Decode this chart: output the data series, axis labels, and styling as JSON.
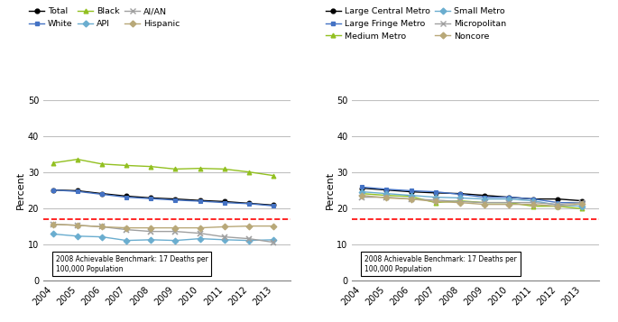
{
  "years": [
    2004,
    2005,
    2006,
    2007,
    2008,
    2009,
    2010,
    2011,
    2012,
    2013
  ],
  "left_chart": {
    "series": {
      "Total": [
        25.0,
        24.8,
        24.0,
        23.3,
        22.8,
        22.5,
        22.1,
        21.8,
        21.3,
        20.8
      ],
      "White": [
        25.0,
        24.6,
        23.8,
        23.0,
        22.6,
        22.2,
        21.9,
        21.5,
        21.2,
        20.6
      ],
      "Black": [
        32.5,
        33.5,
        32.2,
        31.8,
        31.5,
        30.8,
        31.0,
        30.8,
        30.0,
        29.0
      ],
      "API": [
        12.8,
        12.2,
        12.0,
        11.0,
        11.2,
        11.0,
        11.5,
        11.2,
        11.0,
        11.2
      ],
      "AI/AN": [
        15.5,
        15.2,
        14.8,
        14.0,
        13.5,
        13.5,
        13.0,
        12.0,
        11.5,
        10.5
      ],
      "Hispanic": [
        15.5,
        15.2,
        14.8,
        14.5,
        14.5,
        14.5,
        14.5,
        14.8,
        15.0,
        15.0
      ]
    },
    "colors": {
      "Total": "#000000",
      "White": "#4472C4",
      "Black": "#92C020",
      "API": "#4472C4",
      "AI/AN": "#A0A0A0",
      "Hispanic": "#B8A878"
    },
    "markers": {
      "Total": "o",
      "White": "s",
      "Black": "^",
      "API": "D",
      "AI/AN": "x",
      "Hispanic": "D"
    },
    "marker_colors": {
      "Total": "#000000",
      "White": "#4472C4",
      "Black": "#92C020",
      "API": "#6AADCF",
      "AI/AN": "#A0A0A0",
      "Hispanic": "#B8A878"
    },
    "line_colors": {
      "Total": "#000000",
      "White": "#4472C4",
      "Black": "#92C020",
      "API": "#6AADCF",
      "AI/AN": "#A0A0A0",
      "Hispanic": "#B8A878"
    },
    "benchmark": 17,
    "benchmark_label": "2008 Achievable Benchmark: 17 Deaths per\n100,000 Population"
  },
  "right_chart": {
    "series": {
      "Large Central Metro": [
        25.5,
        25.0,
        24.5,
        24.2,
        24.0,
        23.5,
        23.0,
        22.5,
        22.5,
        22.0
      ],
      "Large Fringe Metro": [
        25.8,
        25.2,
        24.8,
        24.5,
        23.8,
        23.0,
        23.0,
        22.5,
        21.5,
        21.5
      ],
      "Medium Metro": [
        24.0,
        23.5,
        23.2,
        21.5,
        22.0,
        21.5,
        21.5,
        20.5,
        20.5,
        19.8
      ],
      "Small Metro": [
        24.5,
        24.0,
        23.5,
        23.0,
        22.8,
        22.5,
        22.5,
        22.0,
        20.8,
        20.5
      ],
      "Micropolitan": [
        23.0,
        23.0,
        22.5,
        22.2,
        21.8,
        21.5,
        21.5,
        21.5,
        21.0,
        21.5
      ],
      "Noncore": [
        23.5,
        22.8,
        22.5,
        21.8,
        21.5,
        21.0,
        21.0,
        21.0,
        20.5,
        21.2
      ]
    },
    "line_colors": {
      "Large Central Metro": "#000000",
      "Large Fringe Metro": "#4472C4",
      "Medium Metro": "#92C020",
      "Small Metro": "#6AADCF",
      "Micropolitan": "#A0A0A0",
      "Noncore": "#B8A878"
    },
    "markers": {
      "Large Central Metro": "o",
      "Large Fringe Metro": "s",
      "Medium Metro": "^",
      "Small Metro": "D",
      "Micropolitan": "x",
      "Noncore": "D"
    },
    "benchmark": 17,
    "benchmark_label": "2008 Achievable Benchmark: 17 Deaths per\n100,000 Population"
  },
  "ylim": [
    0,
    50
  ],
  "yticks": [
    0,
    10,
    20,
    30,
    40,
    50
  ],
  "ylabel": "Percent",
  "background_color": "#ffffff",
  "grid_color": "#c0c0c0"
}
